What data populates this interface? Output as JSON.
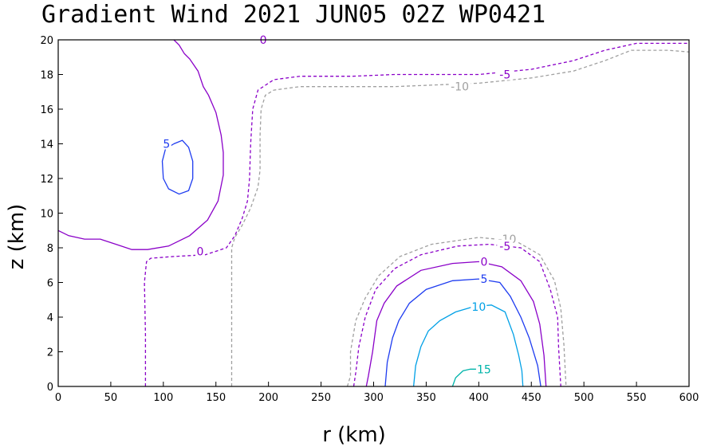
{
  "chart_data": {
    "type": "contour",
    "title": "Gradient Wind 2021 JUN05 02Z   WP0421",
    "xlabel": "r (km)",
    "ylabel": "z (km)",
    "xlim": [
      0,
      600
    ],
    "ylim": [
      0,
      20
    ],
    "xticks": [
      0,
      50,
      100,
      150,
      200,
      250,
      300,
      350,
      400,
      450,
      500,
      550,
      600
    ],
    "yticks": [
      0,
      2,
      4,
      6,
      8,
      10,
      12,
      14,
      16,
      18,
      20
    ],
    "grid": false,
    "contours": [
      {
        "level": -10,
        "label": "-10",
        "color": "#a0a0a0",
        "dashed": true,
        "lines": [
          [
            [
              165,
              0
            ],
            [
              165,
              8
            ],
            [
              168,
              8.6
            ],
            [
              175,
              9.3
            ],
            [
              183,
              10.3
            ],
            [
              190,
              11.5
            ],
            [
              192,
              12.5
            ],
            [
              192,
              14.5
            ],
            [
              193,
              16
            ],
            [
              197,
              16.8
            ],
            [
              205,
              17.1
            ],
            [
              230,
              17.3
            ],
            [
              270,
              17.3
            ],
            [
              320,
              17.3
            ],
            [
              400,
              17.5
            ],
            [
              450,
              17.8
            ],
            [
              490,
              18.2
            ],
            [
              520,
              18.8
            ],
            [
              545,
              19.4
            ],
            [
              580,
              19.4
            ],
            [
              600,
              19.3
            ]
          ],
          [
            [
              275,
              0
            ],
            [
              278,
              0.6
            ],
            [
              278,
              2
            ],
            [
              283,
              3.8
            ],
            [
              292,
              5.1
            ],
            [
              305,
              6.4
            ],
            [
              325,
              7.5
            ],
            [
              355,
              8.2
            ],
            [
              400,
              8.6
            ],
            [
              435,
              8.4
            ],
            [
              458,
              7.6
            ],
            [
              472,
              6.1
            ],
            [
              478,
              4.5
            ],
            [
              481,
              2.4
            ],
            [
              483,
              0
            ]
          ]
        ],
        "labels": [
          [
            382,
            17.3
          ],
          [
            427,
            8.5
          ]
        ]
      },
      {
        "level": -5,
        "label": "-5",
        "color": "#8a00c8",
        "dashed": true,
        "lines": [
          [
            [
              83,
              0
            ],
            [
              83,
              3
            ],
            [
              82,
              6
            ],
            [
              84,
              7.2
            ],
            [
              88,
              7.4
            ],
            [
              110,
              7.5
            ],
            [
              140,
              7.6
            ],
            [
              160,
              8
            ],
            [
              168,
              8.7
            ],
            [
              175,
              9.7
            ],
            [
              180,
              10.7
            ],
            [
              182,
              12
            ],
            [
              183,
              14
            ],
            [
              185,
              16
            ],
            [
              190,
              17.1
            ],
            [
              205,
              17.7
            ],
            [
              230,
              17.9
            ],
            [
              280,
              17.9
            ],
            [
              320,
              18
            ],
            [
              400,
              18
            ],
            [
              450,
              18.3
            ],
            [
              490,
              18.8
            ],
            [
              520,
              19.4
            ],
            [
              550,
              19.8
            ],
            [
              600,
              19.8
            ]
          ],
          [
            [
              281,
              0
            ],
            [
              283,
              0.8
            ],
            [
              286,
              2.3
            ],
            [
              292,
              4
            ],
            [
              302,
              5.6
            ],
            [
              320,
              6.8
            ],
            [
              345,
              7.6
            ],
            [
              380,
              8.1
            ],
            [
              410,
              8.2
            ],
            [
              440,
              8
            ],
            [
              458,
              7.2
            ],
            [
              468,
              5.6
            ],
            [
              475,
              4
            ],
            [
              476,
              2.2
            ],
            [
              478,
              0
            ]
          ]
        ],
        "labels": [
          [
            425,
            18.0
          ],
          [
            425,
            8.1
          ]
        ]
      },
      {
        "level": 0,
        "label": "0",
        "color": "#8a00c8",
        "dashed": false,
        "lines": [
          [
            [
              0,
              9
            ],
            [
              10,
              8.7
            ],
            [
              25,
              8.5
            ],
            [
              40,
              8.5
            ],
            [
              55,
              8.2
            ],
            [
              70,
              7.9
            ],
            [
              85,
              7.9
            ],
            [
              105,
              8.1
            ],
            [
              125,
              8.7
            ],
            [
              142,
              9.6
            ],
            [
              152,
              10.7
            ],
            [
              157,
              12.2
            ],
            [
              157,
              13.5
            ],
            [
              155,
              14.5
            ],
            [
              150,
              15.8
            ],
            [
              143,
              16.8
            ],
            [
              138,
              17.3
            ],
            [
              133,
              18.2
            ],
            [
              125,
              18.9
            ],
            [
              120,
              19.2
            ],
            [
              115,
              19.7
            ],
            [
              110,
              20
            ]
          ],
          [
            [
              293,
              0
            ],
            [
              295,
              0.6
            ],
            [
              299,
              2
            ],
            [
              303,
              3.8
            ],
            [
              310,
              4.8
            ],
            [
              322,
              5.8
            ],
            [
              345,
              6.7
            ],
            [
              375,
              7.1
            ],
            [
              400,
              7.2
            ],
            [
              422,
              6.9
            ],
            [
              440,
              6.1
            ],
            [
              452,
              4.9
            ],
            [
              458,
              3.6
            ],
            [
              462,
              1.8
            ],
            [
              464,
              0
            ]
          ]
        ],
        "labels": [
          [
            195,
            20
          ],
          [
            135,
            7.8
          ],
          [
            405,
            7.2
          ]
        ]
      },
      {
        "level": 5,
        "label": "5",
        "color": "#1e3cf0",
        "dashed": false,
        "lines": [
          [
            [
              110,
              14
            ],
            [
              118,
              14.2
            ],
            [
              124,
              13.8
            ],
            [
              128,
              13
            ],
            [
              128,
              12
            ],
            [
              124,
              11.3
            ],
            [
              115,
              11.1
            ],
            [
              105,
              11.4
            ],
            [
              100,
              12
            ],
            [
              99,
              13
            ],
            [
              102,
              13.7
            ],
            [
              110,
              14
            ]
          ],
          [
            [
              311,
              0
            ],
            [
              313,
              1.4
            ],
            [
              318,
              2.8
            ],
            [
              324,
              3.8
            ],
            [
              334,
              4.8
            ],
            [
              350,
              5.6
            ],
            [
              375,
              6.1
            ],
            [
              400,
              6.2
            ],
            [
              420,
              6
            ],
            [
              430,
              5.2
            ],
            [
              440,
              4
            ],
            [
              448,
              2.8
            ],
            [
              456,
              1.2
            ],
            [
              459,
              0
            ]
          ]
        ],
        "labels": [
          [
            103,
            14
          ],
          [
            405,
            6.2
          ]
        ]
      },
      {
        "level": 10,
        "label": "10",
        "color": "#00a0e6",
        "dashed": false,
        "lines": [
          [
            [
              338,
              0
            ],
            [
              340,
              1.2
            ],
            [
              345,
              2.3
            ],
            [
              352,
              3.2
            ],
            [
              363,
              3.8
            ],
            [
              378,
              4.3
            ],
            [
              395,
              4.6
            ],
            [
              412,
              4.7
            ],
            [
              425,
              4.3
            ],
            [
              433,
              3
            ],
            [
              438,
              1.8
            ],
            [
              441,
              0.9
            ],
            [
              442,
              0
            ]
          ]
        ],
        "labels": [
          [
            400,
            4.6
          ]
        ]
      },
      {
        "level": 15,
        "label": "15",
        "color": "#00b4aa",
        "dashed": false,
        "lines": [
          [
            [
              375,
              0
            ],
            [
              378,
              0.5
            ],
            [
              385,
              0.9
            ],
            [
              392,
              1.0
            ],
            [
              400,
              1.0
            ]
          ]
        ],
        "labels": [
          [
            405,
            1.0
          ]
        ]
      }
    ]
  }
}
